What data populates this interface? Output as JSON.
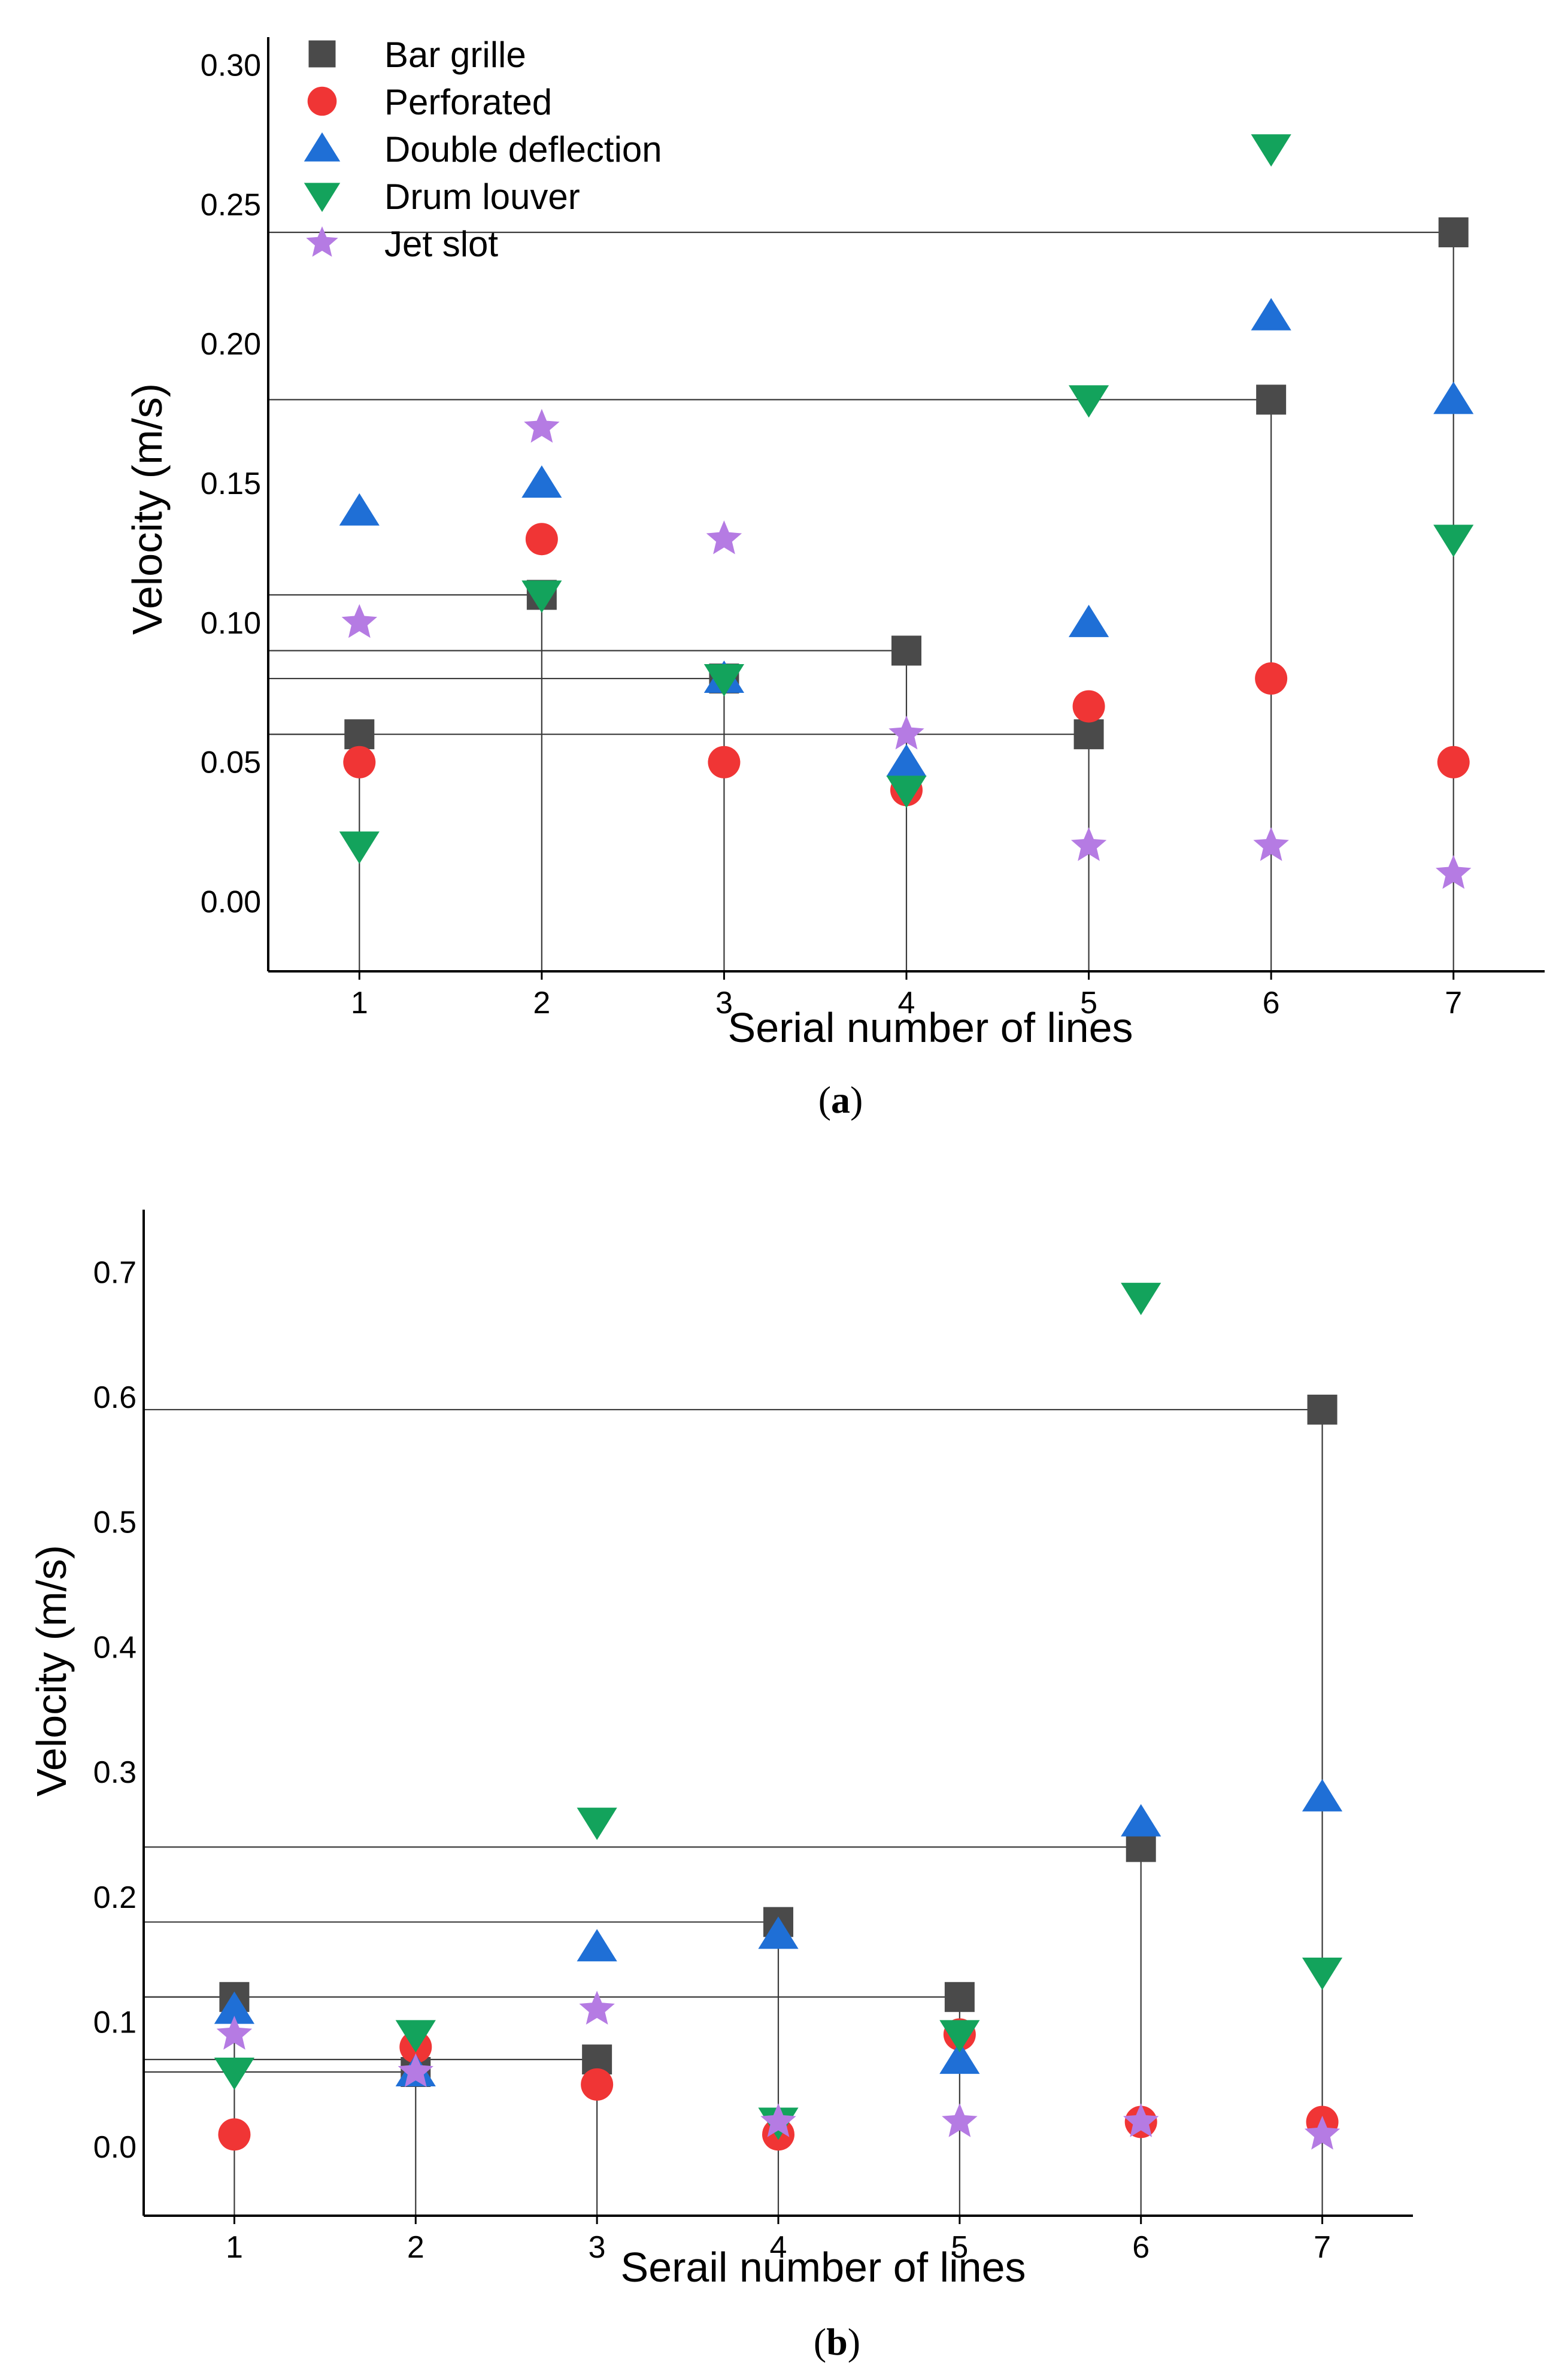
{
  "chart_data": [
    {
      "type": "scatter",
      "panel_label": "a",
      "xlabel": "Serial number of lines",
      "ylabel": "Velocity (m/s)",
      "x": [
        1,
        2,
        3,
        4,
        5,
        6,
        7
      ],
      "xlim": [
        0.5,
        7.5
      ],
      "ylim": [
        -0.025,
        0.31
      ],
      "yticks": [
        0.0,
        0.05,
        0.1,
        0.15,
        0.2,
        0.25,
        0.3
      ],
      "ytick_labels": [
        "0.00",
        "0.05",
        "0.10",
        "0.15",
        "0.20",
        "0.25",
        "0.30"
      ],
      "xtick_labels": [
        "1",
        "2",
        "3",
        "4",
        "5",
        "6",
        "7"
      ],
      "legend_position": "top-left",
      "series": [
        {
          "name": "Bar grille",
          "marker": "square",
          "color": "#4a4a4a",
          "values": [
            0.06,
            0.11,
            0.08,
            0.09,
            0.06,
            0.18,
            0.24
          ]
        },
        {
          "name": "Perforated",
          "marker": "circle",
          "color": "#f03535",
          "values": [
            0.05,
            0.13,
            0.05,
            0.04,
            0.07,
            0.08,
            0.05
          ]
        },
        {
          "name": "Double deflection",
          "marker": "triangle-up",
          "color": "#1f6fd6",
          "values": [
            0.14,
            0.15,
            0.08,
            0.05,
            0.1,
            0.21,
            0.18
          ]
        },
        {
          "name": "Drum louver",
          "marker": "triangle-down",
          "color": "#13a35c",
          "values": [
            0.02,
            0.11,
            0.08,
            0.04,
            0.18,
            0.27,
            0.13
          ]
        },
        {
          "name": "Jet slot",
          "marker": "star",
          "color": "#b57be3",
          "values": [
            0.1,
            0.17,
            0.13,
            0.06,
            0.02,
            0.02,
            0.01
          ]
        }
      ]
    },
    {
      "type": "scatter",
      "panel_label": "b",
      "xlabel": "Serail number of lines",
      "ylabel": "Velocity (m/s)",
      "x": [
        1,
        2,
        3,
        4,
        5,
        6,
        7
      ],
      "xlim": [
        0.5,
        7.5
      ],
      "ylim": [
        -0.055,
        0.75
      ],
      "yticks": [
        0.0,
        0.1,
        0.2,
        0.3,
        0.4,
        0.5,
        0.6,
        0.7
      ],
      "ytick_labels": [
        "0.0",
        "0.1",
        "0.2",
        "0.3",
        "0.4",
        "0.5",
        "0.6",
        "0.7"
      ],
      "xtick_labels": [
        "1",
        "2",
        "3",
        "4",
        "5",
        "6",
        "7"
      ],
      "legend_position": "none",
      "series": [
        {
          "name": "Bar grille",
          "marker": "square",
          "color": "#4a4a4a",
          "values": [
            0.12,
            0.06,
            0.07,
            0.18,
            0.12,
            0.24,
            0.59
          ]
        },
        {
          "name": "Perforated",
          "marker": "circle",
          "color": "#f03535",
          "values": [
            0.01,
            0.08,
            0.05,
            0.01,
            0.09,
            0.02,
            0.02
          ]
        },
        {
          "name": "Double deflection",
          "marker": "triangle-up",
          "color": "#1f6fd6",
          "values": [
            0.11,
            0.06,
            0.16,
            0.17,
            0.07,
            0.26,
            0.28
          ]
        },
        {
          "name": "Drum louver",
          "marker": "triangle-down",
          "color": "#13a35c",
          "values": [
            0.06,
            0.09,
            0.26,
            0.02,
            0.09,
            0.68,
            0.14
          ]
        },
        {
          "name": "Jet slot",
          "marker": "star",
          "color": "#b57be3",
          "values": [
            0.09,
            0.06,
            0.11,
            0.02,
            0.02,
            0.02,
            0.01
          ]
        }
      ]
    }
  ]
}
